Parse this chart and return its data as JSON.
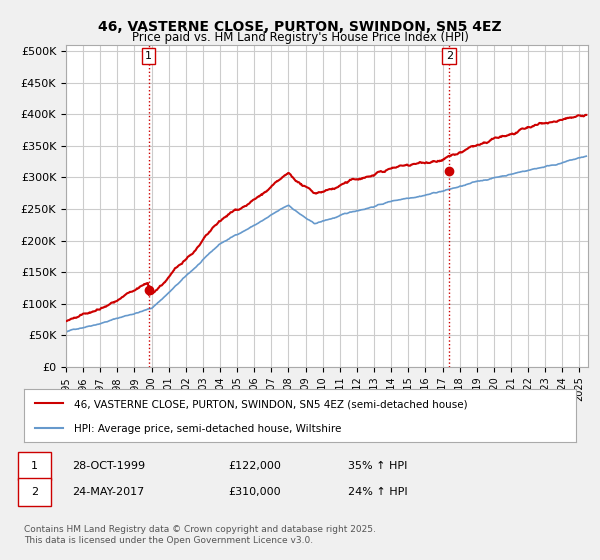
{
  "title": "46, VASTERNE CLOSE, PURTON, SWINDON, SN5 4EZ",
  "subtitle": "Price paid vs. HM Land Registry's House Price Index (HPI)",
  "background_color": "#f0f0f0",
  "plot_background": "#ffffff",
  "grid_color": "#cccccc",
  "ylim": [
    0,
    510000
  ],
  "yticks": [
    0,
    50000,
    100000,
    150000,
    200000,
    250000,
    300000,
    350000,
    400000,
    450000,
    500000
  ],
  "ytick_labels": [
    "£0",
    "£50K",
    "£100K",
    "£150K",
    "£200K",
    "£250K",
    "£300K",
    "£350K",
    "£400K",
    "£450K",
    "£500K"
  ],
  "xlim_start": 1995.0,
  "xlim_end": 2025.5,
  "transaction1_x": 1999.83,
  "transaction1_y": 122000,
  "transaction1_label": "1",
  "transaction2_x": 2017.39,
  "transaction2_y": 310000,
  "transaction2_label": "2",
  "vline1_x": 1999.83,
  "vline2_x": 2017.39,
  "vline_color": "#cc0000",
  "vline_style": ":",
  "legend_line1": "46, VASTERNE CLOSE, PURTON, SWINDON, SN5 4EZ (semi-detached house)",
  "legend_line2": "HPI: Average price, semi-detached house, Wiltshire",
  "table_row1_num": "1",
  "table_row1_date": "28-OCT-1999",
  "table_row1_price": "£122,000",
  "table_row1_hpi": "35% ↑ HPI",
  "table_row2_num": "2",
  "table_row2_date": "24-MAY-2017",
  "table_row2_price": "£310,000",
  "table_row2_hpi": "24% ↑ HPI",
  "footer": "Contains HM Land Registry data © Crown copyright and database right 2025.\nThis data is licensed under the Open Government Licence v3.0.",
  "red_line_color": "#cc0000",
  "blue_line_color": "#6699cc"
}
